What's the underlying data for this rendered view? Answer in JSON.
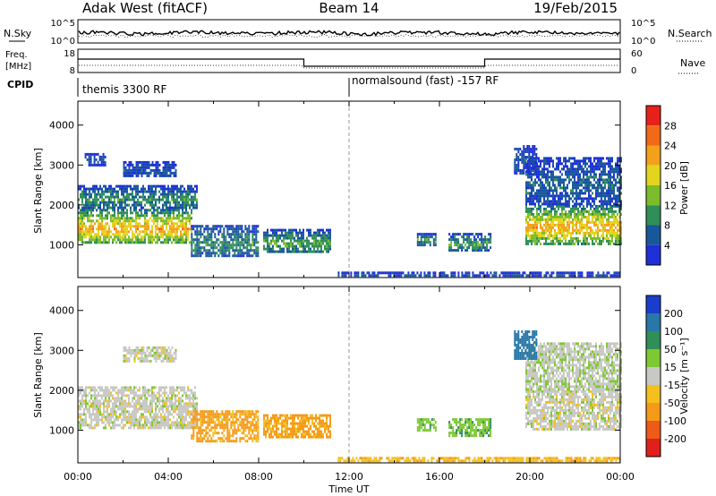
{
  "header": {
    "station": "Adak West (fitACF)",
    "beam": "Beam 14",
    "date": "19/Feb/2015"
  },
  "noise_panel": {
    "left_label": "N.Sky",
    "right_label": "N.Search",
    "left_ticks": [
      "10^5",
      "10^0"
    ],
    "right_ticks": [
      "10^5",
      "10^0"
    ]
  },
  "freq_panel": {
    "left_label_1": "Freq.",
    "left_label_2": "[MHz]",
    "right_label": "Nave",
    "left_ticks": [
      "18",
      "8"
    ],
    "right_ticks": [
      "60",
      "0"
    ]
  },
  "cpid": {
    "label": "CPID",
    "programs": [
      {
        "name": "themis 3300 RF",
        "start_hour": 0,
        "end_hour": 12
      },
      {
        "name": "normalsound (fast) -157 RF",
        "start_hour": 12,
        "end_hour": 24
      }
    ]
  },
  "power_scale": {
    "title": "Power [dB]",
    "ticks": [
      "28",
      "24",
      "20",
      "16",
      "12",
      "8",
      "4"
    ],
    "colors": [
      "#e8201c",
      "#f26a18",
      "#f3a11a",
      "#e3d41d",
      "#7cbc2c",
      "#2f8f58",
      "#18589a",
      "#1f2fd8"
    ]
  },
  "velocity_scale": {
    "title": "Velocity [m s⁻¹]",
    "ticks": [
      "200",
      "100",
      "50",
      "15",
      "-15",
      "-50",
      "-100",
      "-200"
    ],
    "colors": [
      "#1a3dcc",
      "#2877a8",
      "#2f8f58",
      "#7ec834",
      "#c8c8c4",
      "#f3c01e",
      "#f59a18",
      "#ee5a18",
      "#e0201c"
    ]
  },
  "chart_data": [
    {
      "type": "heatmap",
      "title": "Power",
      "xlabel": "",
      "ylabel": "Slant Range [km]",
      "xlim": [
        0,
        24
      ],
      "ylim": [
        180,
        4600
      ],
      "yticks": [
        1000,
        2000,
        3000,
        4000
      ],
      "unit": "dB",
      "regions": [
        {
          "t0": 0.0,
          "t1": 5.0,
          "r0": 1050,
          "r1": 1900,
          "p": 22
        },
        {
          "t0": 0.0,
          "t1": 5.3,
          "r0": 1900,
          "r1": 2500,
          "p": 10
        },
        {
          "t0": 2.0,
          "t1": 4.3,
          "r0": 2700,
          "r1": 3100,
          "p": 6
        },
        {
          "t0": 0.3,
          "t1": 1.2,
          "r0": 3000,
          "r1": 3300,
          "p": 5
        },
        {
          "t0": 5.0,
          "t1": 8.0,
          "r0": 700,
          "r1": 1500,
          "p": 10
        },
        {
          "t0": 8.2,
          "t1": 11.2,
          "r0": 800,
          "r1": 1400,
          "p": 12
        },
        {
          "t0": 15.0,
          "t1": 15.8,
          "r0": 1000,
          "r1": 1300,
          "p": 11
        },
        {
          "t0": 16.4,
          "t1": 18.3,
          "r0": 850,
          "r1": 1300,
          "p": 11
        },
        {
          "t0": 19.8,
          "t1": 24.0,
          "r0": 1050,
          "r1": 2000,
          "p": 22
        },
        {
          "t0": 19.8,
          "t1": 24.0,
          "r0": 2000,
          "r1": 3200,
          "p": 7
        },
        {
          "t0": 19.3,
          "t1": 20.3,
          "r0": 2800,
          "r1": 3500,
          "p": 6
        },
        {
          "t0": 11.5,
          "t1": 24.0,
          "r0": 200,
          "r1": 330,
          "p": 5
        }
      ]
    },
    {
      "type": "heatmap",
      "title": "Velocity",
      "xlabel": "Time UT",
      "ylabel": "Slant Range [km]",
      "xlim": [
        0,
        24
      ],
      "ylim": [
        180,
        4600
      ],
      "xticks": [
        "00:00",
        "04:00",
        "08:00",
        "12:00",
        "16:00",
        "20:00",
        "00:00"
      ],
      "yticks": [
        1000,
        2000,
        3000,
        4000
      ],
      "unit": "m s^-1",
      "regions": [
        {
          "t0": 0.0,
          "t1": 5.3,
          "r0": 1050,
          "r1": 2100,
          "v": 0
        },
        {
          "t0": 2.0,
          "t1": 4.3,
          "r0": 2700,
          "r1": 3100,
          "v": 0
        },
        {
          "t0": 5.0,
          "t1": 8.0,
          "r0": 700,
          "r1": 1500,
          "v": -60
        },
        {
          "t0": 8.2,
          "t1": 11.2,
          "r0": 800,
          "r1": 1400,
          "v": -60
        },
        {
          "t0": 15.0,
          "t1": 15.8,
          "r0": 1000,
          "r1": 1300,
          "v": 40
        },
        {
          "t0": 16.4,
          "t1": 18.3,
          "r0": 850,
          "r1": 1300,
          "v": 40
        },
        {
          "t0": 19.8,
          "t1": 24.0,
          "r0": 1050,
          "r1": 2000,
          "v": 0
        },
        {
          "t0": 19.8,
          "t1": 24.0,
          "r0": 2000,
          "r1": 3200,
          "v": 5
        },
        {
          "t0": 19.3,
          "t1": 20.3,
          "r0": 2800,
          "r1": 3500,
          "v": 150
        },
        {
          "t0": 11.5,
          "t1": 24.0,
          "r0": 200,
          "r1": 330,
          "v": -40
        }
      ]
    }
  ]
}
